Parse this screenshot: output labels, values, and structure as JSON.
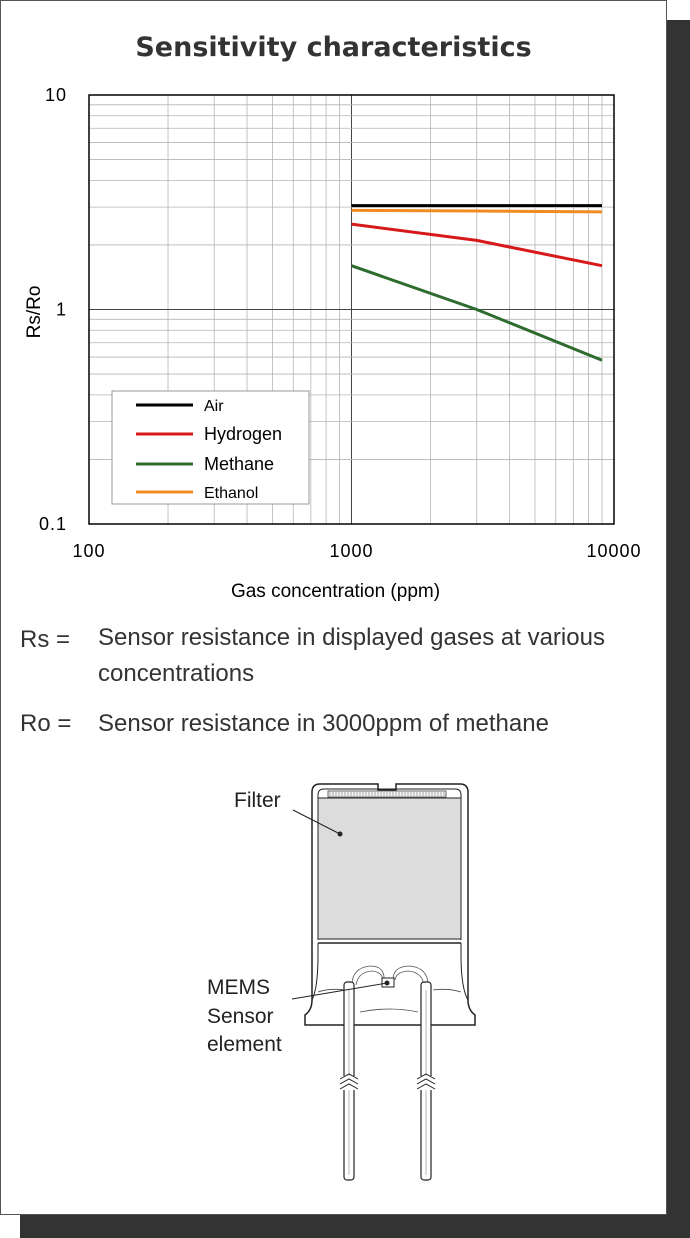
{
  "chart_data": {
    "type": "line",
    "title": "Sensitivity characteristics",
    "xlabel": "Gas concentration (ppm)",
    "ylabel": "Rs/Ro",
    "xscale": "log",
    "yscale": "log",
    "xlim": [
      100,
      10000
    ],
    "ylim": [
      0.1,
      10
    ],
    "xticks": [
      "100",
      "1000",
      "10000"
    ],
    "yticks": [
      "10",
      "1",
      "0.1"
    ],
    "grid": true,
    "legend": "bottom-left",
    "series": [
      {
        "name": "Air",
        "color": "#000000",
        "x": [
          1000,
          3000,
          9000
        ],
        "y": [
          3.05,
          3.05,
          3.05
        ]
      },
      {
        "name": "Hydrogen",
        "color": "#d7191c",
        "x": [
          1000,
          3000,
          9000
        ],
        "y": [
          2.5,
          2.1,
          1.6
        ]
      },
      {
        "name": "Methane",
        "color": "#2e6b2e",
        "x": [
          1000,
          3000,
          9000
        ],
        "y": [
          1.6,
          1.0,
          0.58
        ]
      },
      {
        "name": "Ethanol",
        "color": "#f08c1e",
        "x": [
          1000,
          3000,
          9000
        ],
        "y": [
          2.9,
          2.88,
          2.85
        ]
      }
    ]
  },
  "definitions": [
    {
      "term": "Rs =",
      "text": "Sensor resistance in displayed gases at various concentrations"
    },
    {
      "term": "Ro =",
      "text": "Sensor resistance in 3000ppm of methane"
    }
  ],
  "diagram": {
    "filter_label": "Filter",
    "sensor_label_lines": [
      "MEMS",
      "Sensor",
      "element"
    ]
  }
}
